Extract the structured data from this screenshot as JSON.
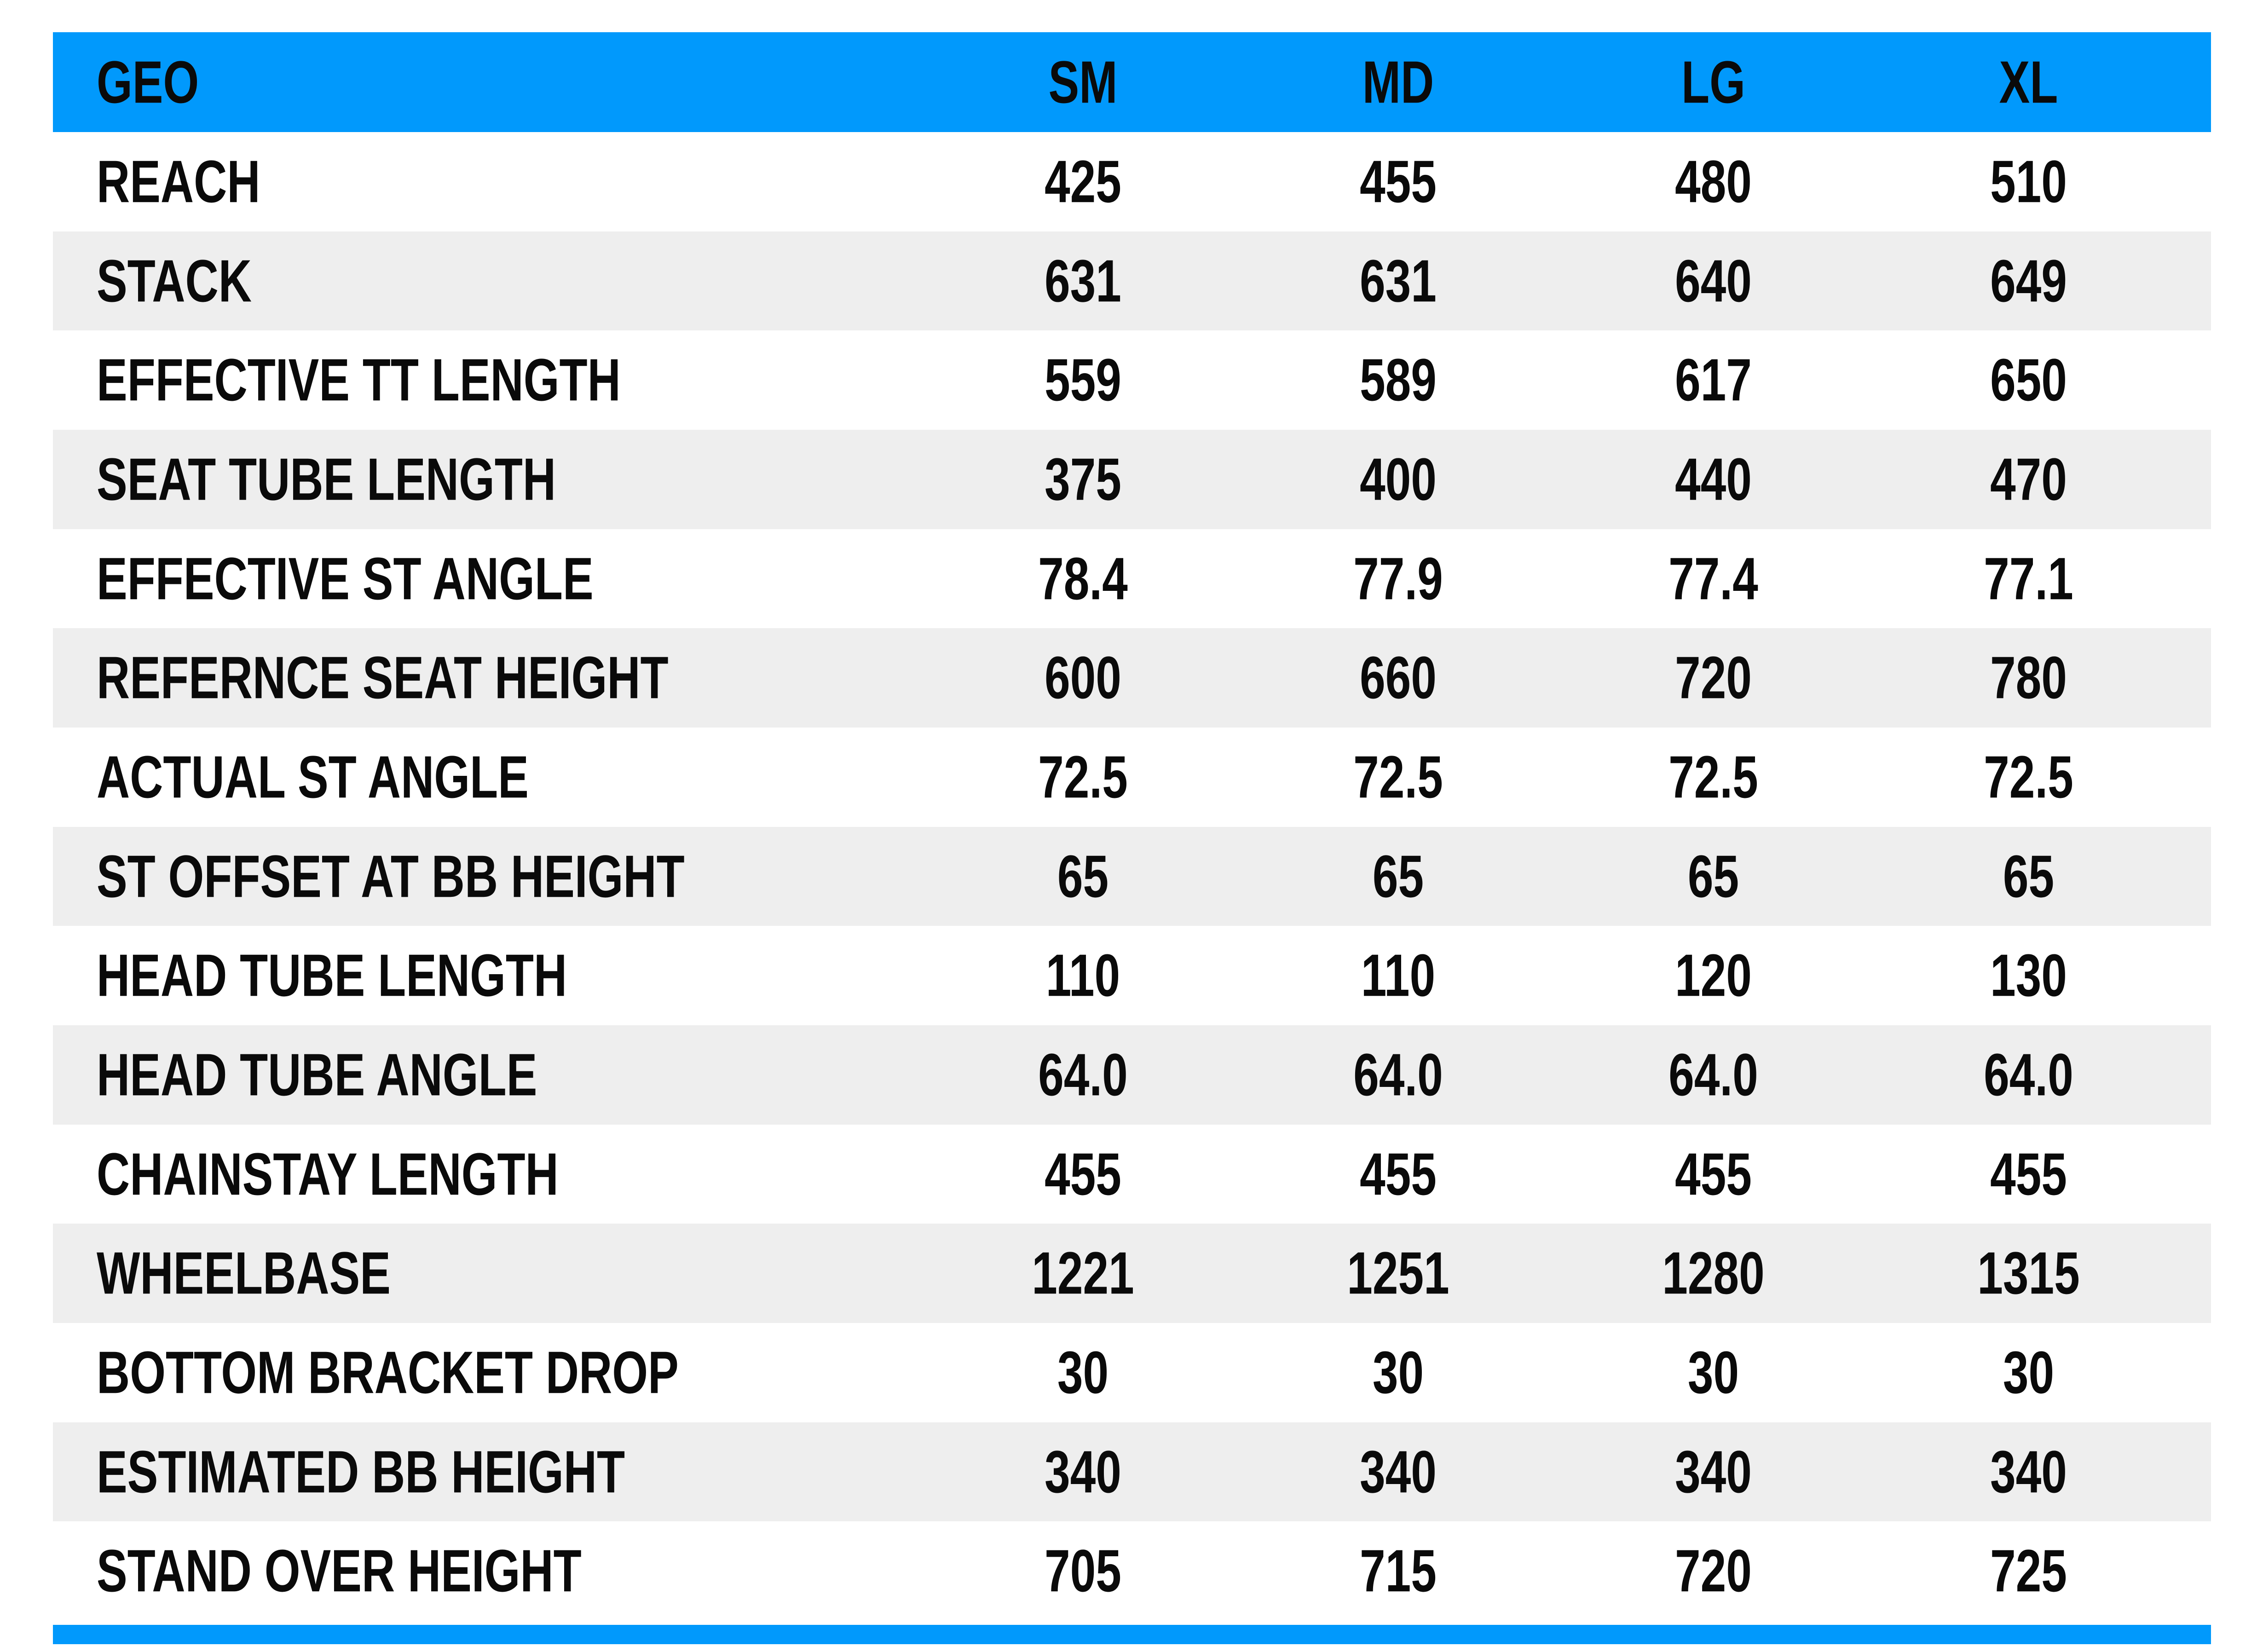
{
  "colors": {
    "accent": "#0199FC",
    "row_alt": "#EEEEEE",
    "text": "#0a0a0a",
    "background": "#FFFFFF"
  },
  "table": {
    "header": {
      "label": "GEO",
      "columns": [
        "SM",
        "MD",
        "LG",
        "XL"
      ]
    },
    "rows": [
      {
        "label": "REACH",
        "values": [
          "425",
          "455",
          "480",
          "510"
        ]
      },
      {
        "label": "STACK",
        "values": [
          "631",
          "631",
          "640",
          "649"
        ]
      },
      {
        "label": "EFFECTIVE TT LENGTH",
        "values": [
          "559",
          "589",
          "617",
          "650"
        ]
      },
      {
        "label": "SEAT TUBE LENGTH",
        "values": [
          "375",
          "400",
          "440",
          "470"
        ]
      },
      {
        "label": "EFFECTIVE ST ANGLE",
        "values": [
          "78.4",
          "77.9",
          "77.4",
          "77.1"
        ]
      },
      {
        "label": "REFERNCE SEAT HEIGHT",
        "values": [
          "600",
          "660",
          "720",
          "780"
        ]
      },
      {
        "label": "ACTUAL ST ANGLE",
        "values": [
          "72.5",
          "72.5",
          "72.5",
          "72.5"
        ]
      },
      {
        "label": "ST OFFSET AT BB HEIGHT",
        "values": [
          "65",
          "65",
          "65",
          "65"
        ]
      },
      {
        "label": "HEAD TUBE LENGTH",
        "values": [
          "110",
          "110",
          "120",
          "130"
        ]
      },
      {
        "label": "HEAD TUBE ANGLE",
        "values": [
          "64.0",
          "64.0",
          "64.0",
          "64.0"
        ]
      },
      {
        "label": "CHAINSTAY LENGTH",
        "values": [
          "455",
          "455",
          "455",
          "455"
        ]
      },
      {
        "label": "WHEELBASE",
        "values": [
          "1221",
          "1251",
          "1280",
          "1315"
        ]
      },
      {
        "label": "BOTTOM BRACKET DROP",
        "values": [
          "30",
          "30",
          "30",
          "30"
        ]
      },
      {
        "label": "ESTIMATED BB HEIGHT",
        "values": [
          "340",
          "340",
          "340",
          "340"
        ]
      },
      {
        "label": "STAND OVER HEIGHT",
        "values": [
          "705",
          "715",
          "720",
          "725"
        ]
      }
    ]
  },
  "chart_data": {
    "type": "table",
    "title": "GEO",
    "columns": [
      "GEO",
      "SM",
      "MD",
      "LG",
      "XL"
    ],
    "rows": [
      [
        "REACH",
        425,
        455,
        480,
        510
      ],
      [
        "STACK",
        631,
        631,
        640,
        649
      ],
      [
        "EFFECTIVE TT LENGTH",
        559,
        589,
        617,
        650
      ],
      [
        "SEAT TUBE LENGTH",
        375,
        400,
        440,
        470
      ],
      [
        "EFFECTIVE ST ANGLE",
        78.4,
        77.9,
        77.4,
        77.1
      ],
      [
        "REFERNCE SEAT HEIGHT",
        600,
        660,
        720,
        780
      ],
      [
        "ACTUAL ST ANGLE",
        72.5,
        72.5,
        72.5,
        72.5
      ],
      [
        "ST OFFSET AT BB HEIGHT",
        65,
        65,
        65,
        65
      ],
      [
        "HEAD TUBE LENGTH",
        110,
        110,
        120,
        130
      ],
      [
        "HEAD TUBE ANGLE",
        64.0,
        64.0,
        64.0,
        64.0
      ],
      [
        "CHAINSTAY LENGTH",
        455,
        455,
        455,
        455
      ],
      [
        "WHEELBASE",
        1221,
        1251,
        1280,
        1315
      ],
      [
        "BOTTOM BRACKET DROP",
        30,
        30,
        30,
        30
      ],
      [
        "ESTIMATED BB HEIGHT",
        340,
        340,
        340,
        340
      ],
      [
        "STAND OVER HEIGHT",
        705,
        715,
        720,
        725
      ]
    ]
  }
}
